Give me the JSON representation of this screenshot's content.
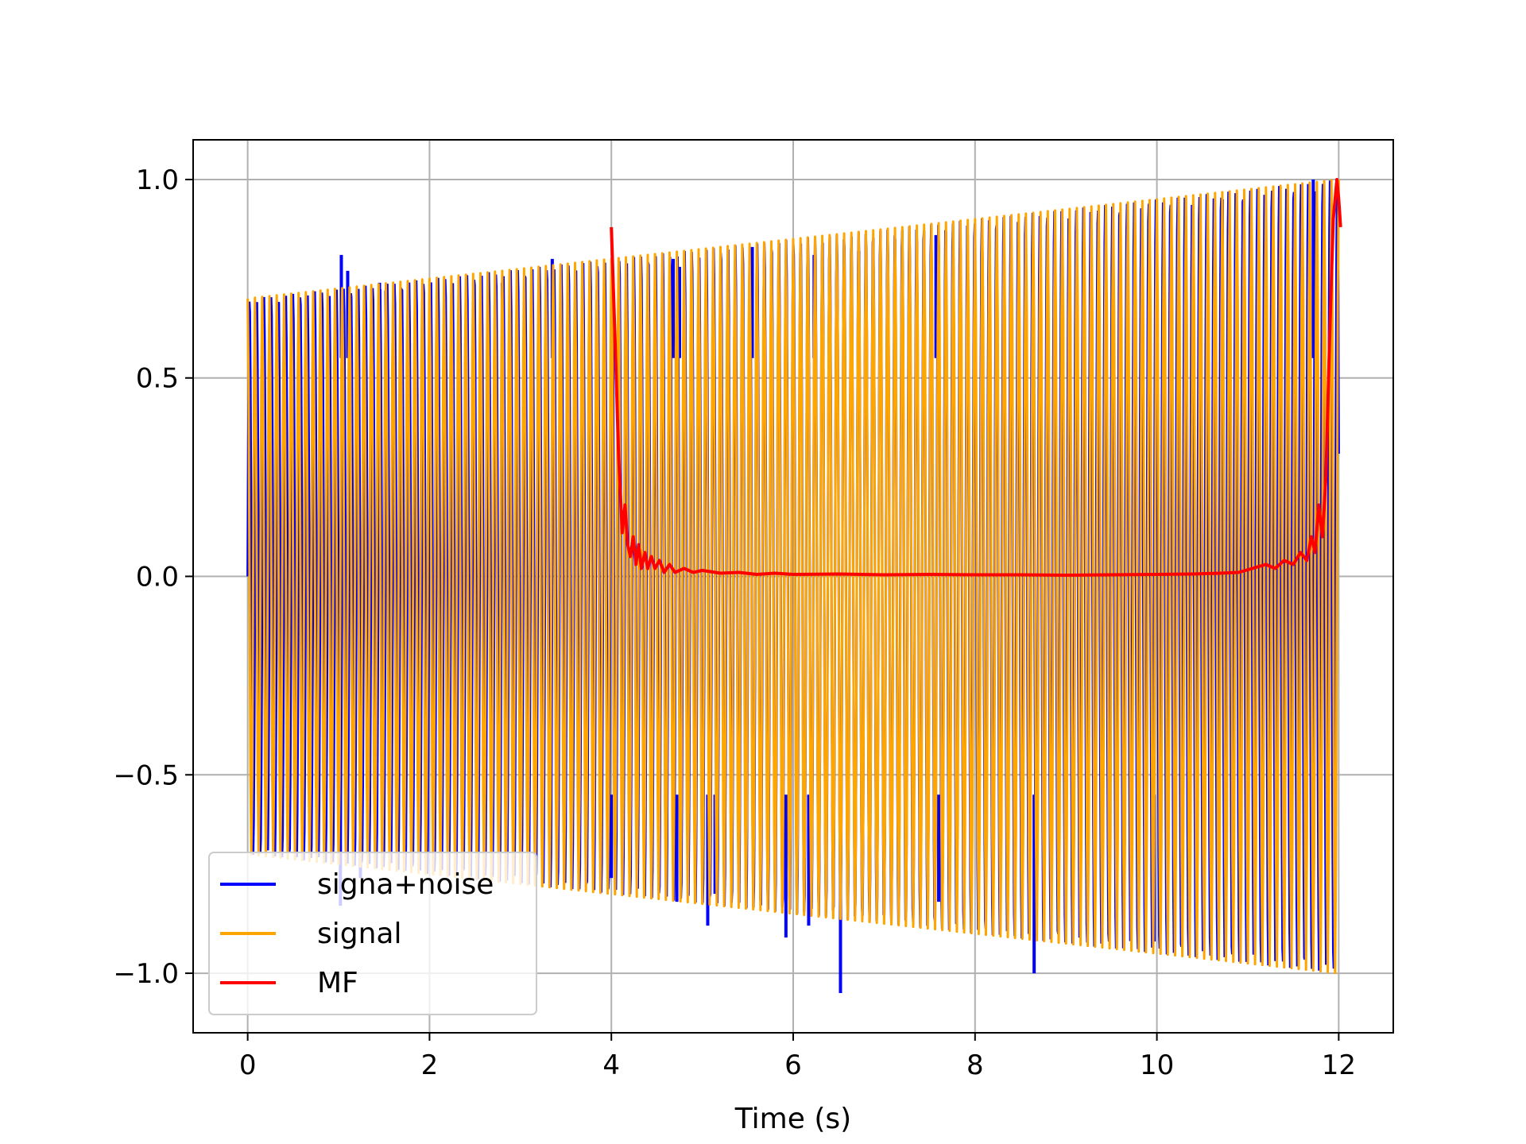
{
  "chart_data": {
    "type": "line",
    "title": "",
    "xlabel": "Time (s)",
    "ylabel": "",
    "xlim": [
      -0.6,
      12.6
    ],
    "ylim": [
      -1.15,
      1.1
    ],
    "xticks": [
      0,
      2,
      4,
      6,
      8,
      10,
      12
    ],
    "yticks": [
      -1.0,
      -0.5,
      0.0,
      0.5,
      1.0
    ],
    "xtick_labels": [
      "0",
      "2",
      "4",
      "6",
      "8",
      "10",
      "12"
    ],
    "ytick_labels": [
      "−1.0",
      "−0.5",
      "0.0",
      "0.5",
      "1.0"
    ],
    "grid": true,
    "legend_position": "lower-left",
    "series": [
      {
        "name": "signa+noise",
        "color": "#0000ff",
        "kind": "oscillating-with-spikes",
        "t_start": 0,
        "t_end": 12,
        "amplitude_start": 0.7,
        "amplitude_end": 1.0,
        "spikes": [
          {
            "x": 1.03,
            "y": 0.81
          },
          {
            "x": 1.1,
            "y": 0.77
          },
          {
            "x": 1.45,
            "y": 0.74
          },
          {
            "x": 1.52,
            "y": 0.72
          },
          {
            "x": 2.8,
            "y": 0.74
          },
          {
            "x": 3.35,
            "y": 0.8
          },
          {
            "x": 4.68,
            "y": 0.8
          },
          {
            "x": 4.75,
            "y": 0.78
          },
          {
            "x": 5.55,
            "y": 0.83
          },
          {
            "x": 6.23,
            "y": 0.81
          },
          {
            "x": 6.72,
            "y": 0.82
          },
          {
            "x": 7.57,
            "y": 0.86
          },
          {
            "x": 10.72,
            "y": 0.95
          },
          {
            "x": 11.72,
            "y": 1.0
          },
          {
            "x": 1.02,
            "y": -0.83
          },
          {
            "x": 1.24,
            "y": -0.76
          },
          {
            "x": 4.0,
            "y": -0.76
          },
          {
            "x": 4.72,
            "y": -0.82
          },
          {
            "x": 5.06,
            "y": -0.88
          },
          {
            "x": 5.14,
            "y": -0.8
          },
          {
            "x": 5.92,
            "y": -0.91
          },
          {
            "x": 6.17,
            "y": -0.88
          },
          {
            "x": 6.52,
            "y": -1.05
          },
          {
            "x": 7.6,
            "y": -0.82
          },
          {
            "x": 8.65,
            "y": -1.0
          },
          {
            "x": 9.97,
            "y": -0.92
          }
        ]
      },
      {
        "name": "signal",
        "color": "#ffa500",
        "kind": "oscillating",
        "t_start": 0,
        "t_end": 12,
        "amplitude_start": 0.7,
        "amplitude_end": 1.0,
        "cycles": 150
      },
      {
        "name": "MF",
        "color": "#ff0000",
        "kind": "line",
        "x": [
          4.0,
          4.04,
          4.08,
          4.12,
          4.15,
          4.18,
          4.21,
          4.24,
          4.27,
          4.3,
          4.33,
          4.37,
          4.4,
          4.44,
          4.48,
          4.53,
          4.58,
          4.64,
          4.7,
          4.8,
          4.9,
          5.0,
          5.2,
          5.4,
          5.6,
          5.8,
          6.0,
          6.5,
          7.0,
          7.5,
          8.0,
          8.5,
          9.0,
          9.5,
          10.0,
          10.4,
          10.7,
          10.9,
          11.05,
          11.2,
          11.3,
          11.4,
          11.5,
          11.58,
          11.65,
          11.7,
          11.74,
          11.78,
          11.82,
          11.86,
          11.9,
          11.94,
          11.98,
          12.0,
          12.02
        ],
        "y": [
          0.88,
          0.6,
          0.3,
          0.11,
          0.18,
          0.08,
          0.05,
          0.1,
          0.03,
          0.08,
          0.02,
          0.06,
          0.02,
          0.05,
          0.02,
          0.04,
          0.01,
          0.03,
          0.01,
          0.02,
          0.01,
          0.015,
          0.008,
          0.01,
          0.005,
          0.008,
          0.005,
          0.006,
          0.004,
          0.005,
          0.004,
          0.004,
          0.003,
          0.004,
          0.005,
          0.006,
          0.008,
          0.01,
          0.02,
          0.03,
          0.02,
          0.04,
          0.03,
          0.06,
          0.04,
          0.1,
          0.06,
          0.18,
          0.1,
          0.25,
          0.6,
          0.9,
          1.0,
          0.95,
          0.88
        ]
      }
    ]
  }
}
